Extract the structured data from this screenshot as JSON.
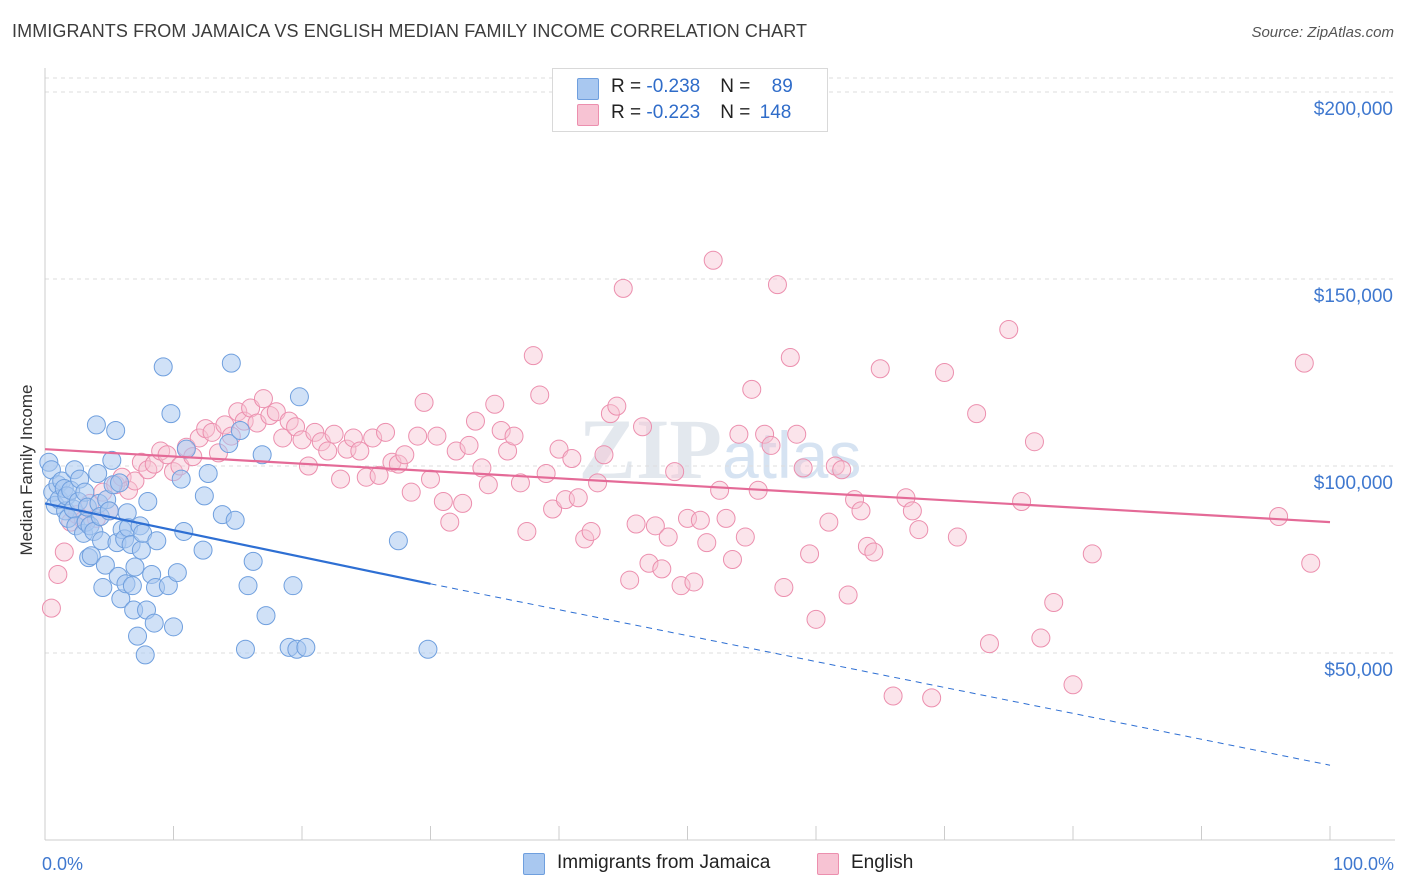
{
  "title": "IMMIGRANTS FROM JAMAICA VS ENGLISH MEDIAN FAMILY INCOME CORRELATION CHART",
  "source": "Source: ZipAtlas.com",
  "colors": {
    "blue_fill": "#a9c8f0",
    "blue_stroke": "#6f9fde",
    "blue_line": "#2e6fd3",
    "pink_fill": "#f7c3d3",
    "pink_stroke": "#ec8fae",
    "pink_line": "#e46a97",
    "tick_label": "#3f78cf",
    "grid": "#dddddd"
  },
  "legend": {
    "rows": [
      {
        "r_label": "R = ",
        "r_value": "-0.238",
        "n_label": "N = ",
        "n_value": "89",
        "color": "#a9c8f0",
        "stroke": "#6f9fde"
      },
      {
        "r_label": "R = ",
        "r_value": "-0.223",
        "n_label": "N = ",
        "n_value": "148",
        "color": "#f7c3d3",
        "stroke": "#ec8fae"
      }
    ]
  },
  "bottom_legend": [
    {
      "label": "Immigrants from Jamaica",
      "color": "#a9c8f0",
      "stroke": "#6f9fde"
    },
    {
      "label": "English",
      "color": "#f7c3d3",
      "stroke": "#ec8fae"
    }
  ],
  "chart_data": {
    "type": "scatter",
    "title": "IMMIGRANTS FROM JAMAICA VS ENGLISH MEDIAN FAMILY INCOME CORRELATION CHART",
    "xlabel": "",
    "ylabel": "Median Family Income",
    "xlim": [
      0,
      100
    ],
    "ylim": [
      0,
      210000
    ],
    "x_tick_labels": [
      "0.0%",
      "100.0%"
    ],
    "y_ticks": [
      50000,
      100000,
      150000,
      200000
    ],
    "y_tick_labels": [
      "$50,000",
      "$100,000",
      "$150,000",
      "$200,000"
    ],
    "grid": "horizontal dashed",
    "legend_position": "top-center",
    "watermark": "ZIPatlas",
    "series": [
      {
        "name": "Immigrants from Jamaica",
        "r": -0.238,
        "n": 89,
        "trend": {
          "x_start": 0.0,
          "y_start": 90000,
          "x_solid_end": 30.0,
          "y_solid_end": 68500,
          "x_end": 100.0,
          "y_end": 20000
        },
        "points": [
          [
            0.3,
            101000
          ],
          [
            0.5,
            99000
          ],
          [
            0.6,
            93000
          ],
          [
            0.8,
            89500
          ],
          [
            1.0,
            95000
          ],
          [
            1.1,
            91000
          ],
          [
            1.3,
            96000
          ],
          [
            1.5,
            94000
          ],
          [
            1.6,
            88000
          ],
          [
            1.7,
            92000
          ],
          [
            1.8,
            86000
          ],
          [
            2.0,
            93500
          ],
          [
            2.2,
            88500
          ],
          [
            2.3,
            99000
          ],
          [
            2.4,
            84000
          ],
          [
            2.6,
            90500
          ],
          [
            2.7,
            96500
          ],
          [
            3.0,
            82000
          ],
          [
            3.1,
            93000
          ],
          [
            3.2,
            85000
          ],
          [
            3.3,
            89000
          ],
          [
            3.4,
            75500
          ],
          [
            3.5,
            84000
          ],
          [
            3.6,
            76000
          ],
          [
            3.8,
            82500
          ],
          [
            4.0,
            111000
          ],
          [
            4.1,
            98000
          ],
          [
            4.2,
            90000
          ],
          [
            4.3,
            86500
          ],
          [
            4.4,
            80000
          ],
          [
            4.5,
            67500
          ],
          [
            4.7,
            73500
          ],
          [
            4.8,
            91000
          ],
          [
            5.0,
            88000
          ],
          [
            5.2,
            101500
          ],
          [
            5.3,
            95000
          ],
          [
            5.5,
            109500
          ],
          [
            5.6,
            79500
          ],
          [
            5.7,
            70500
          ],
          [
            5.8,
            95500
          ],
          [
            5.9,
            64500
          ],
          [
            6.0,
            83000
          ],
          [
            6.2,
            80500
          ],
          [
            6.3,
            68500
          ],
          [
            6.4,
            87500
          ],
          [
            6.5,
            83500
          ],
          [
            6.7,
            79000
          ],
          [
            6.8,
            68000
          ],
          [
            6.9,
            61500
          ],
          [
            7.0,
            73000
          ],
          [
            7.2,
            54500
          ],
          [
            7.4,
            84000
          ],
          [
            7.5,
            77500
          ],
          [
            7.6,
            82000
          ],
          [
            7.8,
            49500
          ],
          [
            7.9,
            61500
          ],
          [
            8.0,
            90500
          ],
          [
            8.3,
            71000
          ],
          [
            8.5,
            58000
          ],
          [
            8.6,
            67500
          ],
          [
            8.7,
            80000
          ],
          [
            9.2,
            126500
          ],
          [
            9.6,
            68000
          ],
          [
            9.8,
            114000
          ],
          [
            10.0,
            57000
          ],
          [
            10.3,
            71500
          ],
          [
            10.6,
            96500
          ],
          [
            10.8,
            82500
          ],
          [
            11.0,
            104500
          ],
          [
            12.3,
            77500
          ],
          [
            12.4,
            92000
          ],
          [
            12.7,
            98000
          ],
          [
            13.8,
            87000
          ],
          [
            14.3,
            106000
          ],
          [
            14.5,
            127500
          ],
          [
            14.8,
            85500
          ],
          [
            15.2,
            109500
          ],
          [
            15.6,
            51000
          ],
          [
            15.8,
            68000
          ],
          [
            16.2,
            74500
          ],
          [
            16.9,
            103000
          ],
          [
            17.2,
            60000
          ],
          [
            19.0,
            51500
          ],
          [
            19.3,
            68000
          ],
          [
            19.6,
            51000
          ],
          [
            19.8,
            118500
          ],
          [
            20.3,
            51500
          ],
          [
            27.5,
            80000
          ],
          [
            29.8,
            51000
          ]
        ]
      },
      {
        "name": "English",
        "r": -0.223,
        "n": 148,
        "trend": {
          "x_start": 0.0,
          "y_start": 104500,
          "x_end": 100.0,
          "y_end": 85000
        },
        "points": [
          [
            0.5,
            62000
          ],
          [
            1.0,
            71000
          ],
          [
            1.5,
            77000
          ],
          [
            2.0,
            85000
          ],
          [
            2.5,
            87000
          ],
          [
            3.0,
            85500
          ],
          [
            3.5,
            90000
          ],
          [
            4.0,
            86000
          ],
          [
            4.5,
            93000
          ],
          [
            5.0,
            88000
          ],
          [
            5.5,
            95000
          ],
          [
            6.0,
            97000
          ],
          [
            6.5,
            93500
          ],
          [
            7.0,
            96000
          ],
          [
            7.5,
            101000
          ],
          [
            8.0,
            99000
          ],
          [
            8.5,
            100500
          ],
          [
            9.0,
            104000
          ],
          [
            9.5,
            103000
          ],
          [
            10.0,
            98500
          ],
          [
            10.5,
            100000
          ],
          [
            11.0,
            105000
          ],
          [
            11.5,
            102500
          ],
          [
            12.0,
            107500
          ],
          [
            12.5,
            110000
          ],
          [
            13.0,
            109000
          ],
          [
            13.5,
            103500
          ],
          [
            14.0,
            111000
          ],
          [
            14.5,
            108000
          ],
          [
            15.0,
            114500
          ],
          [
            15.5,
            112000
          ],
          [
            16.0,
            115500
          ],
          [
            16.5,
            111500
          ],
          [
            17.0,
            118000
          ],
          [
            17.5,
            113500
          ],
          [
            18.0,
            114500
          ],
          [
            18.5,
            107500
          ],
          [
            19.0,
            112000
          ],
          [
            19.5,
            110500
          ],
          [
            20.0,
            107000
          ],
          [
            20.5,
            100000
          ],
          [
            21.0,
            109000
          ],
          [
            21.5,
            106500
          ],
          [
            22.0,
            104000
          ],
          [
            22.5,
            108500
          ],
          [
            23.0,
            96500
          ],
          [
            23.5,
            104500
          ],
          [
            24.0,
            107500
          ],
          [
            24.5,
            104000
          ],
          [
            25.0,
            97000
          ],
          [
            25.5,
            107500
          ],
          [
            26.0,
            97500
          ],
          [
            26.5,
            109000
          ],
          [
            27.0,
            101000
          ],
          [
            27.5,
            100500
          ],
          [
            28.0,
            103000
          ],
          [
            28.5,
            93000
          ],
          [
            29.0,
            108000
          ],
          [
            29.5,
            117000
          ],
          [
            30.0,
            96500
          ],
          [
            30.5,
            108000
          ],
          [
            31.0,
            90500
          ],
          [
            31.5,
            85000
          ],
          [
            32.0,
            104000
          ],
          [
            32.5,
            90000
          ],
          [
            33.0,
            105500
          ],
          [
            33.5,
            112000
          ],
          [
            34.0,
            99500
          ],
          [
            34.5,
            95000
          ],
          [
            35.0,
            116500
          ],
          [
            35.5,
            109500
          ],
          [
            36.0,
            104000
          ],
          [
            36.5,
            108000
          ],
          [
            37.0,
            95500
          ],
          [
            37.5,
            82500
          ],
          [
            38.0,
            129500
          ],
          [
            38.5,
            119000
          ],
          [
            39.0,
            98000
          ],
          [
            39.5,
            88500
          ],
          [
            40.0,
            104500
          ],
          [
            40.5,
            91000
          ],
          [
            41.0,
            102000
          ],
          [
            41.5,
            91500
          ],
          [
            42.0,
            80500
          ],
          [
            42.5,
            82500
          ],
          [
            43.0,
            95500
          ],
          [
            43.5,
            103000
          ],
          [
            44.0,
            114000
          ],
          [
            44.5,
            116000
          ],
          [
            45.0,
            147500
          ],
          [
            45.5,
            69500
          ],
          [
            46.0,
            84500
          ],
          [
            46.5,
            110500
          ],
          [
            47.0,
            74000
          ],
          [
            47.5,
            84000
          ],
          [
            48.0,
            72500
          ],
          [
            48.5,
            81000
          ],
          [
            49.0,
            98500
          ],
          [
            49.5,
            68000
          ],
          [
            50.0,
            86000
          ],
          [
            50.5,
            69000
          ],
          [
            51.0,
            85500
          ],
          [
            51.5,
            79500
          ],
          [
            52.0,
            155000
          ],
          [
            52.5,
            93500
          ],
          [
            53.0,
            86000
          ],
          [
            53.5,
            75000
          ],
          [
            54.0,
            108500
          ],
          [
            54.5,
            81000
          ],
          [
            55.0,
            120500
          ],
          [
            55.5,
            93500
          ],
          [
            56.0,
            108500
          ],
          [
            56.5,
            105500
          ],
          [
            57.0,
            148500
          ],
          [
            57.5,
            67500
          ],
          [
            58.0,
            129000
          ],
          [
            58.5,
            108500
          ],
          [
            59.0,
            99500
          ],
          [
            59.5,
            76500
          ],
          [
            60.0,
            59000
          ],
          [
            61.0,
            85000
          ],
          [
            61.5,
            100000
          ],
          [
            62.0,
            99000
          ],
          [
            62.5,
            65500
          ],
          [
            63.0,
            91000
          ],
          [
            63.5,
            88000
          ],
          [
            64.0,
            78500
          ],
          [
            64.5,
            77000
          ],
          [
            65.0,
            126000
          ],
          [
            66.0,
            38500
          ],
          [
            67.0,
            91500
          ],
          [
            67.5,
            88000
          ],
          [
            68.0,
            83000
          ],
          [
            69.0,
            38000
          ],
          [
            70.0,
            125000
          ],
          [
            71.0,
            81000
          ],
          [
            72.5,
            114000
          ],
          [
            73.5,
            52500
          ],
          [
            75.0,
            136500
          ],
          [
            76.0,
            90500
          ],
          [
            77.0,
            106500
          ],
          [
            77.5,
            54000
          ],
          [
            78.5,
            63500
          ],
          [
            80.0,
            41500
          ],
          [
            81.5,
            76500
          ],
          [
            96.0,
            86500
          ],
          [
            98.0,
            127500
          ],
          [
            98.5,
            74000
          ]
        ]
      }
    ]
  }
}
